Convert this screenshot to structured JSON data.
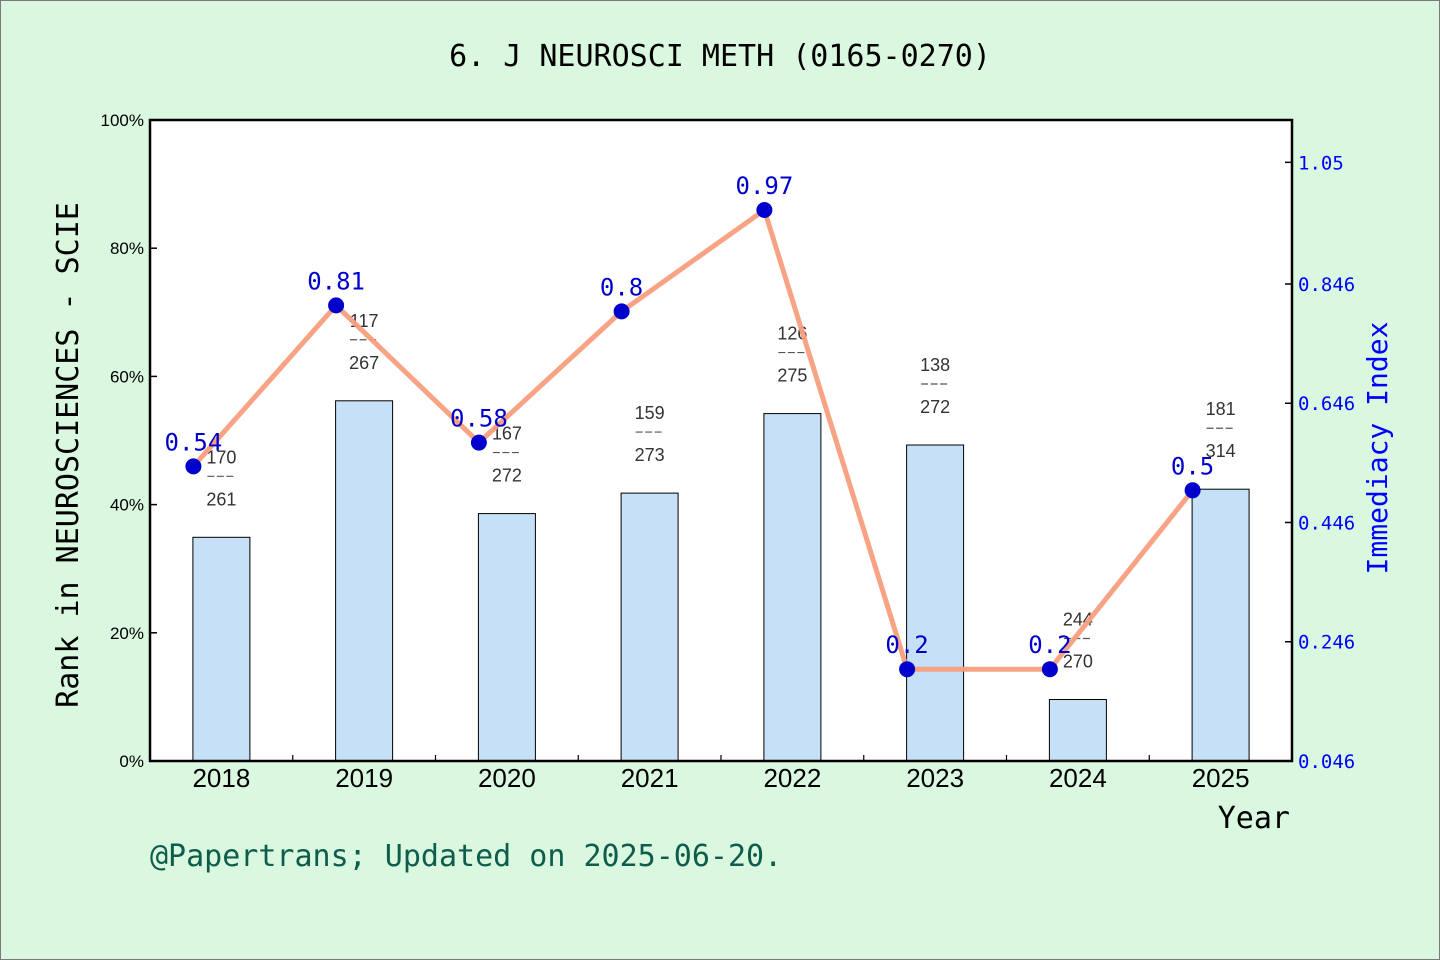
{
  "colors": {
    "background": "#daf7df",
    "plot_background": "#ffffff",
    "bar_fill": "#c5e0f7",
    "bar_stroke": "#000000",
    "line": "#f79e7d",
    "marker": "#0000cc",
    "right_axis": "#0000ff",
    "footer": "#0e5d4c"
  },
  "footer": "@Papertrans; Updated on 2025-06-20.",
  "chart_data": {
    "type": "bar",
    "title": "6. J NEUROSCI METH (0165-0270)",
    "xlabel": "Year",
    "ylabel": "Rank in NEUROSCIENCES - SCIE",
    "y2label": "Immediacy Index",
    "categories": [
      "2018",
      "2019",
      "2020",
      "2021",
      "2022",
      "2023",
      "2024",
      "2025"
    ],
    "ylim": [
      0,
      100
    ],
    "y_ticks": [
      0,
      20,
      40,
      60,
      80,
      100
    ],
    "y_tick_labels": [
      "0%",
      "20%",
      "40%",
      "60%",
      "80%",
      "100%"
    ],
    "y2lim": [
      0.046,
      1.121
    ],
    "y2_ticks": [
      0.046,
      0.246,
      0.446,
      0.646,
      0.846,
      1.05
    ],
    "y2_tick_labels": [
      "0.046",
      "0.246",
      "0.446",
      "0.646",
      "0.846",
      "1.05"
    ],
    "grid": false,
    "series": [
      {
        "name": "Rank in NEUROSCIENCES - SCIE",
        "type": "bar",
        "axis": "left",
        "values": [
          34.9,
          56.2,
          38.6,
          41.8,
          54.2,
          49.3,
          9.6,
          42.4
        ],
        "rank": [
          "170",
          "117",
          "167",
          "159",
          "126",
          "138",
          "244",
          "181"
        ],
        "total": [
          "261",
          "267",
          "272",
          "273",
          "275",
          "272",
          "270",
          "314"
        ]
      },
      {
        "name": "Immediacy Index",
        "type": "line",
        "axis": "right",
        "values": [
          0.54,
          0.81,
          0.58,
          0.8,
          0.97,
          0.2,
          0.2,
          0.5
        ],
        "labels": [
          "0.54",
          "0.81",
          "0.58",
          "0.8",
          "0.97",
          "0.2",
          "0.2",
          "0.5"
        ]
      }
    ]
  }
}
